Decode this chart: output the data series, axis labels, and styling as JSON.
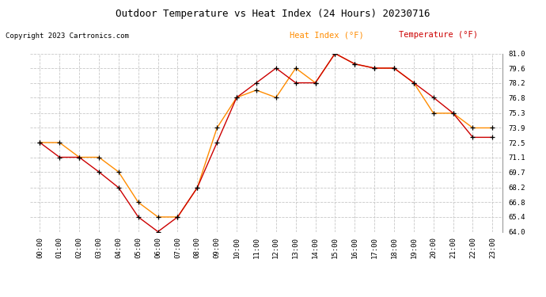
{
  "title": "Outdoor Temperature vs Heat Index (24 Hours) 20230716",
  "copyright": "Copyright 2023 Cartronics.com",
  "legend_heat_index": "Heat Index (°F)",
  "legend_temperature": "Temperature (°F)",
  "heat_index_color": "#ff8c00",
  "temperature_color": "#cc0000",
  "marker_color": "#000000",
  "background_color": "#ffffff",
  "grid_color": "#c8c8c8",
  "x_labels": [
    "00:00",
    "01:00",
    "02:00",
    "03:00",
    "04:00",
    "05:00",
    "06:00",
    "07:00",
    "08:00",
    "09:00",
    "10:00",
    "11:00",
    "12:00",
    "13:00",
    "14:00",
    "15:00",
    "16:00",
    "17:00",
    "18:00",
    "19:00",
    "20:00",
    "21:00",
    "22:00",
    "23:00"
  ],
  "y_ticks": [
    64.0,
    65.4,
    66.8,
    68.2,
    69.7,
    71.1,
    72.5,
    73.9,
    75.3,
    76.8,
    78.2,
    79.6,
    81.0
  ],
  "ylim": [
    64.0,
    81.0
  ],
  "temperature": [
    72.5,
    71.1,
    71.1,
    69.7,
    68.2,
    65.4,
    64.0,
    65.4,
    68.2,
    72.5,
    76.8,
    78.2,
    79.6,
    78.2,
    78.2,
    81.0,
    80.0,
    79.6,
    79.6,
    78.2,
    76.8,
    75.3,
    73.0,
    73.0
  ],
  "heat_index": [
    72.5,
    72.5,
    71.1,
    71.1,
    69.7,
    66.8,
    65.4,
    65.4,
    68.2,
    73.9,
    76.8,
    77.5,
    76.8,
    79.6,
    78.2,
    81.0,
    80.0,
    79.6,
    79.6,
    78.2,
    75.3,
    75.3,
    73.9,
    73.9
  ],
  "title_fontsize": 9,
  "tick_fontsize": 6.5,
  "copyright_fontsize": 6.5,
  "legend_fontsize": 7.5
}
